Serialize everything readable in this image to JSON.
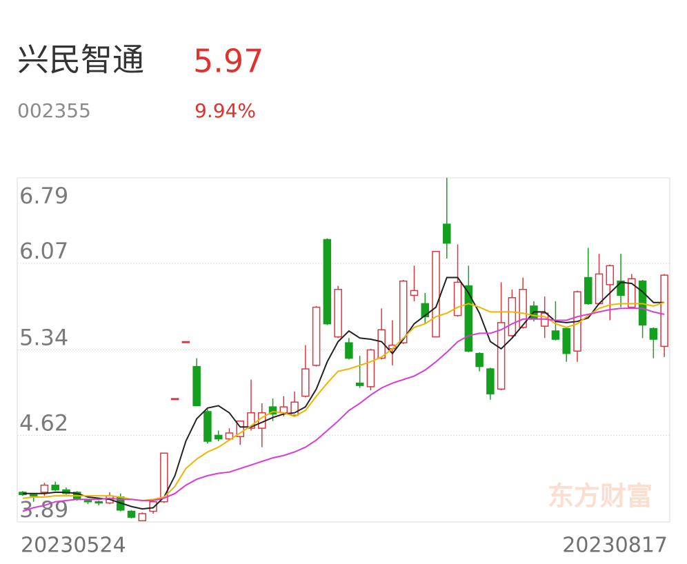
{
  "header": {
    "name": "兴民智通",
    "price": 5.97,
    "code": "002355",
    "change": "9.94%"
  },
  "chart_data": {
    "type": "candlestick",
    "watermark": "东方财富",
    "categories": [
      "20230524",
      null,
      null,
      null,
      null,
      null,
      null,
      null,
      null,
      null,
      null,
      null,
      null,
      null,
      null,
      null,
      null,
      null,
      null,
      null,
      null,
      null,
      null,
      null,
      null,
      null,
      null,
      null,
      null,
      null,
      null,
      null,
      null,
      null,
      null,
      null,
      null,
      null,
      null,
      null,
      null,
      null,
      null,
      null,
      null,
      null,
      null,
      null,
      null,
      null,
      null,
      null,
      null,
      null,
      null,
      null,
      null,
      null,
      null,
      "20230817"
    ],
    "open": [
      4.14,
      4.12,
      4.14,
      4.2,
      4.16,
      4.14,
      4.07,
      4.06,
      4.05,
      4.1,
      3.98,
      3.9,
      3.98,
      4.06,
      4.93,
      5.41,
      5.2,
      4.82,
      4.62,
      4.59,
      4.61,
      4.68,
      4.68,
      4.86,
      4.81,
      4.79,
      4.95,
      5.21,
      6.27,
      5.45,
      5.4,
      5.06,
      5.03,
      5.27,
      5.35,
      5.4,
      5.8,
      5.73,
      5.45,
      6.4,
      5.63,
      5.88,
      5.31,
      5.18,
      5.01,
      5.46,
      5.53,
      5.71,
      5.54,
      5.5,
      5.52,
      5.33,
      5.95,
      5.73,
      5.89,
      5.92,
      5.7,
      5.92,
      5.52,
      5.37
    ],
    "high": [
      4.15,
      4.13,
      4.22,
      4.23,
      4.18,
      4.15,
      4.08,
      4.07,
      4.14,
      4.13,
      3.99,
      3.97,
      4.08,
      4.47,
      4.93,
      5.41,
      5.27,
      4.84,
      4.66,
      4.68,
      4.74,
      5.09,
      4.89,
      4.93,
      4.95,
      4.99,
      5.38,
      5.71,
      6.28,
      5.88,
      5.44,
      5.29,
      5.35,
      5.69,
      5.59,
      5.93,
      6.05,
      5.82,
      6.17,
      6.79,
      6.23,
      6.05,
      5.32,
      5.19,
      5.91,
      5.85,
      5.95,
      5.75,
      5.79,
      5.75,
      5.53,
      5.84,
      6.2,
      6.15,
      6.06,
      6.15,
      5.98,
      5.93,
      5.53,
      5.98
    ],
    "low": [
      4.11,
      4.06,
      4.11,
      4.15,
      4.12,
      4.07,
      4.04,
      4.03,
      4.04,
      3.98,
      3.92,
      3.9,
      3.96,
      4.05,
      4.93,
      5.41,
      4.87,
      4.55,
      4.57,
      4.58,
      4.54,
      4.66,
      4.52,
      4.74,
      4.78,
      4.78,
      4.94,
      5.2,
      5.55,
      5.44,
      5.26,
      5.02,
      5.0,
      5.26,
      5.21,
      5.39,
      5.75,
      5.56,
      5.45,
      6.11,
      5.62,
      5.32,
      5.16,
      4.92,
      5.0,
      5.45,
      5.52,
      5.58,
      5.44,
      5.42,
      5.24,
      5.24,
      5.72,
      5.72,
      5.59,
      5.7,
      5.7,
      5.44,
      5.27,
      5.28
    ],
    "close": [
      4.12,
      4.11,
      4.2,
      4.16,
      4.13,
      4.08,
      4.06,
      4.05,
      4.11,
      3.99,
      3.93,
      3.96,
      4.06,
      4.47,
      4.93,
      5.41,
      4.87,
      4.57,
      4.59,
      4.64,
      4.74,
      4.81,
      4.81,
      4.8,
      4.86,
      4.9,
      5.18,
      5.7,
      5.56,
      5.85,
      5.27,
      5.04,
      5.34,
      5.51,
      5.38,
      5.92,
      5.84,
      5.62,
      6.17,
      6.24,
      5.91,
      5.33,
      5.2,
      4.97,
      5.57,
      5.78,
      5.85,
      5.6,
      5.65,
      5.43,
      5.31,
      5.83,
      5.73,
      5.98,
      6.05,
      5.8,
      5.94,
      5.55,
      5.43,
      5.97
    ],
    "up_color": "#d9363e",
    "down_color": "#14a01e",
    "series": [
      {
        "color": "#222222",
        "values": [
          4.13,
          4.13,
          4.13,
          4.14,
          4.14,
          4.13,
          4.1,
          4.09,
          4.08,
          4.05,
          4.02,
          4.0,
          4.01,
          4.1,
          4.28,
          4.57,
          4.76,
          4.85,
          4.87,
          4.81,
          4.69,
          4.69,
          4.73,
          4.77,
          4.8,
          4.81,
          4.86,
          5.01,
          5.24,
          5.41,
          5.5,
          5.44,
          5.43,
          5.41,
          5.31,
          5.43,
          5.56,
          5.63,
          5.7,
          5.95,
          5.95,
          5.82,
          5.65,
          5.41,
          5.35,
          5.44,
          5.55,
          5.66,
          5.66,
          5.58,
          5.57,
          5.58,
          5.61,
          5.73,
          5.82,
          5.91,
          5.9,
          5.83,
          5.74,
          5.74
        ]
      },
      {
        "color": "#f0b400",
        "values": [
          4.09,
          4.1,
          4.1,
          4.11,
          4.11,
          4.11,
          4.11,
          4.11,
          4.11,
          4.1,
          4.08,
          4.07,
          4.08,
          4.1,
          4.19,
          4.34,
          4.42,
          4.48,
          4.52,
          4.58,
          4.64,
          4.7,
          4.77,
          4.82,
          4.81,
          4.78,
          4.83,
          4.95,
          5.06,
          5.16,
          5.18,
          5.21,
          5.24,
          5.28,
          5.35,
          5.44,
          5.53,
          5.56,
          5.62,
          5.65,
          5.7,
          5.73,
          5.7,
          5.66,
          5.66,
          5.66,
          5.65,
          5.63,
          5.62,
          5.56,
          5.53,
          5.56,
          5.63,
          5.69,
          5.72,
          5.73,
          5.73,
          5.73,
          5.71,
          5.74
        ]
      },
      {
        "color": "#d83ad8",
        "values": [
          3.98,
          4.01,
          4.03,
          4.06,
          4.07,
          4.08,
          4.08,
          4.08,
          4.09,
          4.08,
          4.08,
          4.07,
          4.07,
          4.09,
          4.13,
          4.2,
          4.25,
          4.28,
          4.3,
          4.31,
          4.34,
          4.37,
          4.4,
          4.43,
          4.45,
          4.48,
          4.52,
          4.58,
          4.66,
          4.74,
          4.83,
          4.89,
          4.96,
          5.02,
          5.06,
          5.09,
          5.12,
          5.17,
          5.24,
          5.32,
          5.41,
          5.46,
          5.48,
          5.48,
          5.51,
          5.56,
          5.6,
          5.6,
          5.6,
          5.59,
          5.59,
          5.62,
          5.64,
          5.66,
          5.68,
          5.69,
          5.69,
          5.69,
          5.66,
          5.64
        ]
      }
    ],
    "ylim": [
      3.89,
      6.79
    ],
    "yticks": [
      3.89,
      4.62,
      5.34,
      6.07,
      6.79
    ],
    "grid": true
  }
}
